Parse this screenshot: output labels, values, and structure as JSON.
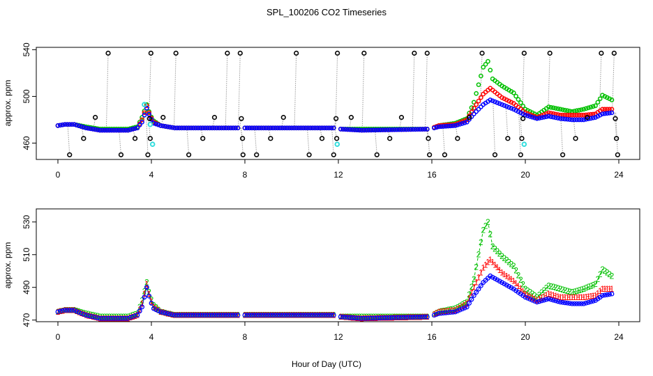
{
  "chart_data": [
    {
      "type": "scatter",
      "title": "SPL_100206  CO2 Timeseries",
      "xlabel": "",
      "ylabel": "approx. ppm",
      "xlim": [
        -2,
        25
      ],
      "ylim": [
        446,
        542
      ],
      "x_ticks": [
        0,
        4,
        8,
        12,
        16,
        20,
        24
      ],
      "y_ticks": [
        460,
        500,
        540
      ],
      "colors": {
        "black": "#000000",
        "green": "#00c000",
        "red": "#ff0000",
        "blue": "#0000ff",
        "cyan": "#33dddd",
        "drop": "#999999"
      },
      "series": [
        {
          "name": "blue",
          "knots": [
            [
              0,
              475
            ],
            [
              0.3,
              476
            ],
            [
              0.7,
              476
            ],
            [
              1.2,
              473
            ],
            [
              1.8,
              471
            ],
            [
              2.5,
              471
            ],
            [
              3.0,
              471
            ],
            [
              3.4,
              473
            ],
            [
              3.6,
              478
            ],
            [
              3.8,
              490
            ],
            [
              3.95,
              482
            ],
            [
              4.1,
              477
            ],
            [
              4.4,
              475
            ],
            [
              5,
              473
            ],
            [
              7.7,
              473
            ],
            [
              8,
              473
            ],
            [
              11.9,
              473
            ],
            [
              12.1,
              472
            ],
            [
              13,
              471
            ],
            [
              15.9,
              472
            ],
            [
              16.3,
              474
            ],
            [
              17,
              475
            ],
            [
              17.5,
              478
            ],
            [
              17.8,
              485
            ],
            [
              18.2,
              493
            ],
            [
              18.5,
              497
            ],
            [
              19,
              493
            ],
            [
              19.5,
              489
            ],
            [
              20,
              484
            ],
            [
              20.5,
              481
            ],
            [
              21,
              483
            ],
            [
              21.5,
              481
            ],
            [
              22,
              480
            ],
            [
              22.5,
              480
            ],
            [
              23,
              482
            ],
            [
              23.3,
              485
            ],
            [
              23.7,
              486
            ]
          ]
        },
        {
          "name": "red",
          "knots": [
            [
              0,
              475
            ],
            [
              0.3,
              476
            ],
            [
              0.7,
              476
            ],
            [
              1.2,
              473
            ],
            [
              1.8,
              471
            ],
            [
              2.5,
              471
            ],
            [
              3.0,
              471
            ],
            [
              3.4,
              473
            ],
            [
              3.6,
              480
            ],
            [
              3.8,
              492
            ],
            [
              3.95,
              483
            ],
            [
              4.1,
              478
            ],
            [
              4.4,
              475
            ],
            [
              5,
              473
            ],
            [
              7.7,
              473
            ],
            [
              8,
              473
            ],
            [
              11.9,
              473
            ],
            [
              12.1,
              472
            ],
            [
              13,
              471
            ],
            [
              15.9,
              472
            ],
            [
              16.3,
              475
            ],
            [
              17,
              476
            ],
            [
              17.5,
              480
            ],
            [
              17.8,
              490
            ],
            [
              18.2,
              502
            ],
            [
              18.5,
              507
            ],
            [
              19,
              499
            ],
            [
              19.5,
              494
            ],
            [
              20,
              486
            ],
            [
              20.5,
              482
            ],
            [
              21,
              486
            ],
            [
              21.5,
              484
            ],
            [
              22,
              484
            ],
            [
              22.5,
              484
            ],
            [
              23,
              485
            ],
            [
              23.3,
              489
            ],
            [
              23.7,
              489
            ]
          ]
        },
        {
          "name": "green",
          "knots": [
            [
              0,
              475
            ],
            [
              0.3,
              476
            ],
            [
              0.7,
              476
            ],
            [
              1.2,
              474
            ],
            [
              1.8,
              472
            ],
            [
              2.5,
              472
            ],
            [
              3.0,
              472
            ],
            [
              3.4,
              474
            ],
            [
              3.6,
              482
            ],
            [
              3.8,
              493
            ],
            [
              3.95,
              484
            ],
            [
              4.1,
              479
            ],
            [
              4.4,
              475
            ],
            [
              5,
              473
            ],
            [
              7.7,
              473
            ],
            [
              8,
              473
            ],
            [
              11.9,
              473
            ],
            [
              12.1,
              472
            ],
            [
              13,
              472
            ],
            [
              15.9,
              472
            ],
            [
              16.3,
              475
            ],
            [
              17,
              477
            ],
            [
              17.5,
              481
            ],
            [
              17.8,
              495
            ],
            [
              18.2,
              525
            ],
            [
              18.4,
              530
            ],
            [
              18.6,
              515
            ],
            [
              19,
              509
            ],
            [
              19.5,
              503
            ],
            [
              20,
              489
            ],
            [
              20.5,
              484
            ],
            [
              21,
              491
            ],
            [
              21.5,
              489
            ],
            [
              22,
              487
            ],
            [
              22.5,
              489
            ],
            [
              23,
              492
            ],
            [
              23.3,
              501
            ],
            [
              23.7,
              497
            ]
          ]
        }
      ],
      "gaps": [
        [
          7.75,
          7.95
        ],
        [
          11.85,
          12.05
        ],
        [
          15.88,
          16.05
        ]
      ],
      "calibration_points": [
        {
          "x": 3.7,
          "y": 493
        },
        {
          "x": 3.95,
          "y": 476
        },
        {
          "x": 4.05,
          "y": 459
        },
        {
          "x": 11.95,
          "y": 459
        },
        {
          "x": 19.95,
          "y": 459
        }
      ],
      "black_markers": [
        {
          "x": 0.5,
          "y": 450
        },
        {
          "x": 1.1,
          "y": 464
        },
        {
          "x": 1.6,
          "y": 482
        },
        {
          "x": 2.15,
          "y": 537
        },
        {
          "x": 2.7,
          "y": 450
        },
        {
          "x": 3.3,
          "y": 464
        },
        {
          "x": 3.85,
          "y": 450
        },
        {
          "x": 3.92,
          "y": 481
        },
        {
          "x": 3.95,
          "y": 464
        },
        {
          "x": 3.98,
          "y": 537
        },
        {
          "x": 4.5,
          "y": 482
        },
        {
          "x": 5.05,
          "y": 537
        },
        {
          "x": 5.6,
          "y": 450
        },
        {
          "x": 6.2,
          "y": 464
        },
        {
          "x": 6.7,
          "y": 482
        },
        {
          "x": 7.25,
          "y": 537
        },
        {
          "x": 7.8,
          "y": 537
        },
        {
          "x": 7.85,
          "y": 481
        },
        {
          "x": 7.9,
          "y": 464
        },
        {
          "x": 7.92,
          "y": 450
        },
        {
          "x": 8.5,
          "y": 450
        },
        {
          "x": 9.1,
          "y": 464
        },
        {
          "x": 9.65,
          "y": 482
        },
        {
          "x": 10.2,
          "y": 537
        },
        {
          "x": 10.75,
          "y": 450
        },
        {
          "x": 11.3,
          "y": 464
        },
        {
          "x": 11.8,
          "y": 450
        },
        {
          "x": 11.9,
          "y": 481
        },
        {
          "x": 11.93,
          "y": 464
        },
        {
          "x": 11.96,
          "y": 537
        },
        {
          "x": 12.55,
          "y": 482
        },
        {
          "x": 13.1,
          "y": 537
        },
        {
          "x": 13.65,
          "y": 450
        },
        {
          "x": 14.2,
          "y": 464
        },
        {
          "x": 14.7,
          "y": 482
        },
        {
          "x": 15.25,
          "y": 537
        },
        {
          "x": 15.8,
          "y": 537
        },
        {
          "x": 15.85,
          "y": 464
        },
        {
          "x": 15.9,
          "y": 450
        },
        {
          "x": 16.55,
          "y": 450
        },
        {
          "x": 17.1,
          "y": 464
        },
        {
          "x": 17.6,
          "y": 482
        },
        {
          "x": 18.15,
          "y": 537
        },
        {
          "x": 18.7,
          "y": 450
        },
        {
          "x": 19.25,
          "y": 464
        },
        {
          "x": 19.8,
          "y": 450
        },
        {
          "x": 19.85,
          "y": 464
        },
        {
          "x": 19.9,
          "y": 481
        },
        {
          "x": 19.95,
          "y": 537
        },
        {
          "x": 21.05,
          "y": 537
        },
        {
          "x": 21.6,
          "y": 450
        },
        {
          "x": 22.15,
          "y": 464
        },
        {
          "x": 22.65,
          "y": 482
        },
        {
          "x": 23.25,
          "y": 537
        },
        {
          "x": 23.8,
          "y": 537
        },
        {
          "x": 23.85,
          "y": 481
        },
        {
          "x": 23.9,
          "y": 464
        },
        {
          "x": 23.95,
          "y": 450
        }
      ]
    },
    {
      "type": "line",
      "title": "",
      "xlabel": "Hour of Day (UTC)",
      "ylabel": "approx. ppm",
      "xlim": [
        -2,
        25
      ],
      "ylim": [
        469,
        538
      ],
      "x_ticks": [
        0,
        4,
        8,
        12,
        16,
        20,
        24
      ],
      "y_ticks": [
        470,
        490,
        510,
        530
      ],
      "marker_labels": {
        "red": "1",
        "green": "2"
      },
      "series_ref": "same as upper panel: blue, red, green"
    }
  ]
}
